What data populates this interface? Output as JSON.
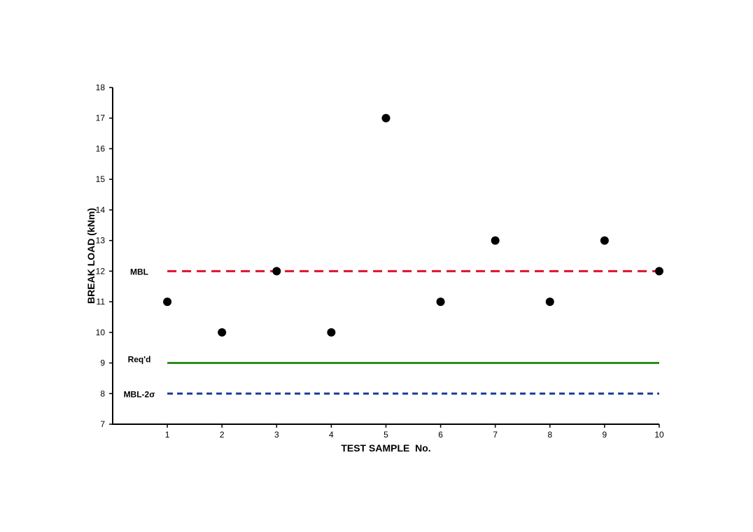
{
  "chart_data": {
    "type": "scatter",
    "xlabel": "TEST SAMPLE  No.",
    "ylabel": "BREAK LOAD (kNm)",
    "xlim": [
      0,
      10
    ],
    "ylim": [
      7,
      18
    ],
    "x_ticks": [
      1,
      2,
      3,
      4,
      5,
      6,
      7,
      8,
      9,
      10
    ],
    "y_ticks": [
      7,
      8,
      9,
      10,
      11,
      12,
      13,
      14,
      15,
      16,
      17,
      18
    ],
    "grid": false,
    "legend": "none",
    "series": [
      {
        "color": "#000000",
        "x": [
          1,
          2,
          3,
          4,
          5,
          6,
          7,
          8,
          9,
          10
        ],
        "y": [
          11,
          10,
          12,
          10,
          17,
          11,
          13,
          11,
          13,
          12
        ]
      }
    ],
    "reference_lines": [
      {
        "label": "MBL",
        "y": 12,
        "x_start": 1,
        "x_end": 10,
        "style": "dashed",
        "color": "#e0102c"
      },
      {
        "label": "Req'd",
        "y": 9,
        "x_start": 1,
        "x_end": 10,
        "style": "solid",
        "color": "#2e8b1e"
      },
      {
        "label": "MBL-2σ",
        "y": 8,
        "x_start": 1,
        "x_end": 10,
        "style": "dashed",
        "color": "#1a3a9c"
      }
    ]
  }
}
